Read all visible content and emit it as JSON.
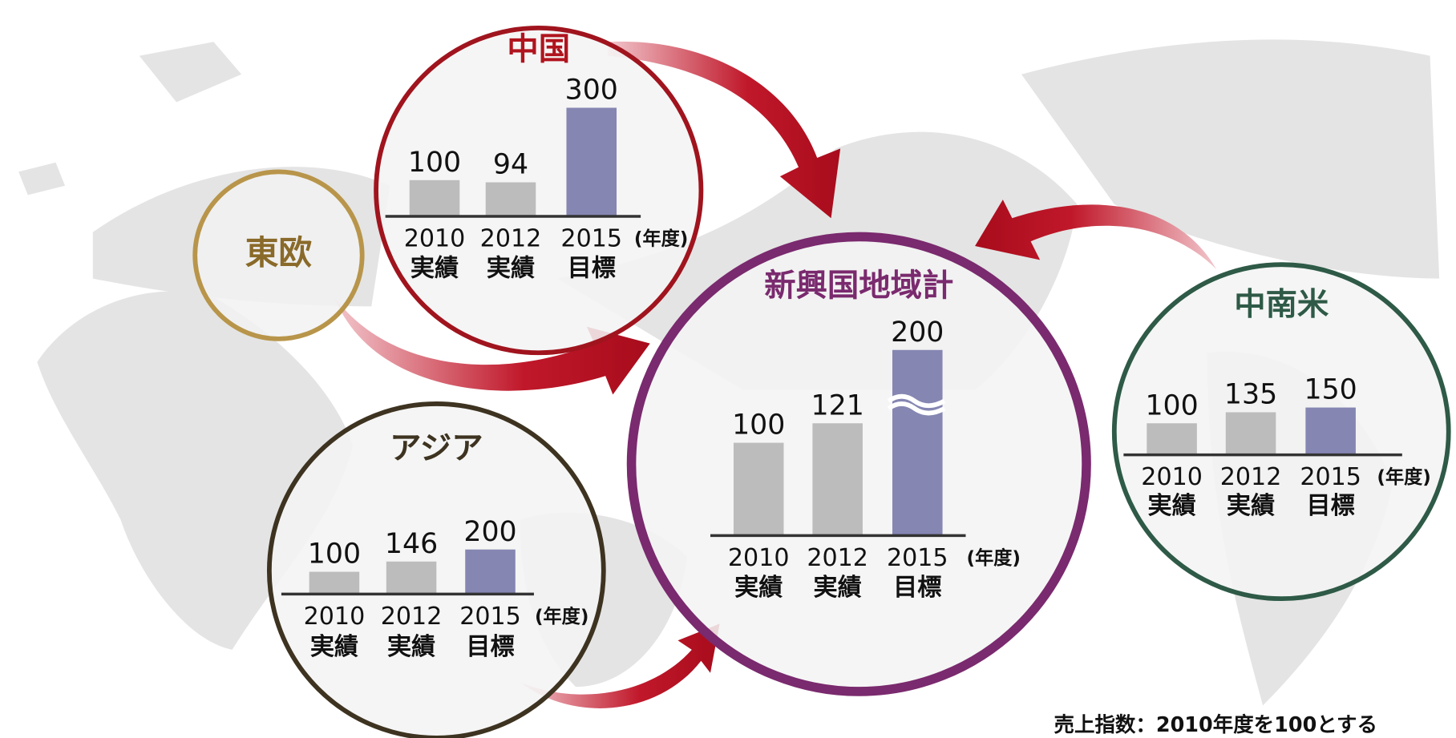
{
  "chart_data": [
    {
      "type": "bar",
      "title": "中国",
      "categories": [
        "2010",
        "2012",
        "2015"
      ],
      "category_sublabels": [
        "実績",
        "実績",
        "目標"
      ],
      "unit_label": "(年度)",
      "values": [
        100,
        94,
        300
      ],
      "colors": [
        "#bcbcbc",
        "#bcbcbc",
        "#8586b2"
      ]
    },
    {
      "type": "bar",
      "title": "新興国地域計",
      "categories": [
        "2010",
        "2012",
        "2015"
      ],
      "category_sublabels": [
        "実績",
        "実績",
        "目標"
      ],
      "unit_label": "(年度)",
      "values": [
        100,
        121,
        200
      ],
      "colors": [
        "#bcbcbc",
        "#bcbcbc",
        "#8586b2"
      ]
    },
    {
      "type": "bar",
      "title": "アジア",
      "categories": [
        "2010",
        "2012",
        "2015"
      ],
      "category_sublabels": [
        "実績",
        "実績",
        "目標"
      ],
      "unit_label": "(年度)",
      "values": [
        100,
        146,
        200
      ],
      "colors": [
        "#bcbcbc",
        "#bcbcbc",
        "#8586b2"
      ]
    },
    {
      "type": "bar",
      "title": "中南米",
      "categories": [
        "2010",
        "2012",
        "2015"
      ],
      "category_sublabels": [
        "実績",
        "実績",
        "目標"
      ],
      "unit_label": "(年度)",
      "values": [
        100,
        135,
        150
      ],
      "colors": [
        "#bcbcbc",
        "#bcbcbc",
        "#8586b2"
      ]
    }
  ],
  "east_europe": "東欧",
  "note": "売上指数：2010年度を100とする"
}
